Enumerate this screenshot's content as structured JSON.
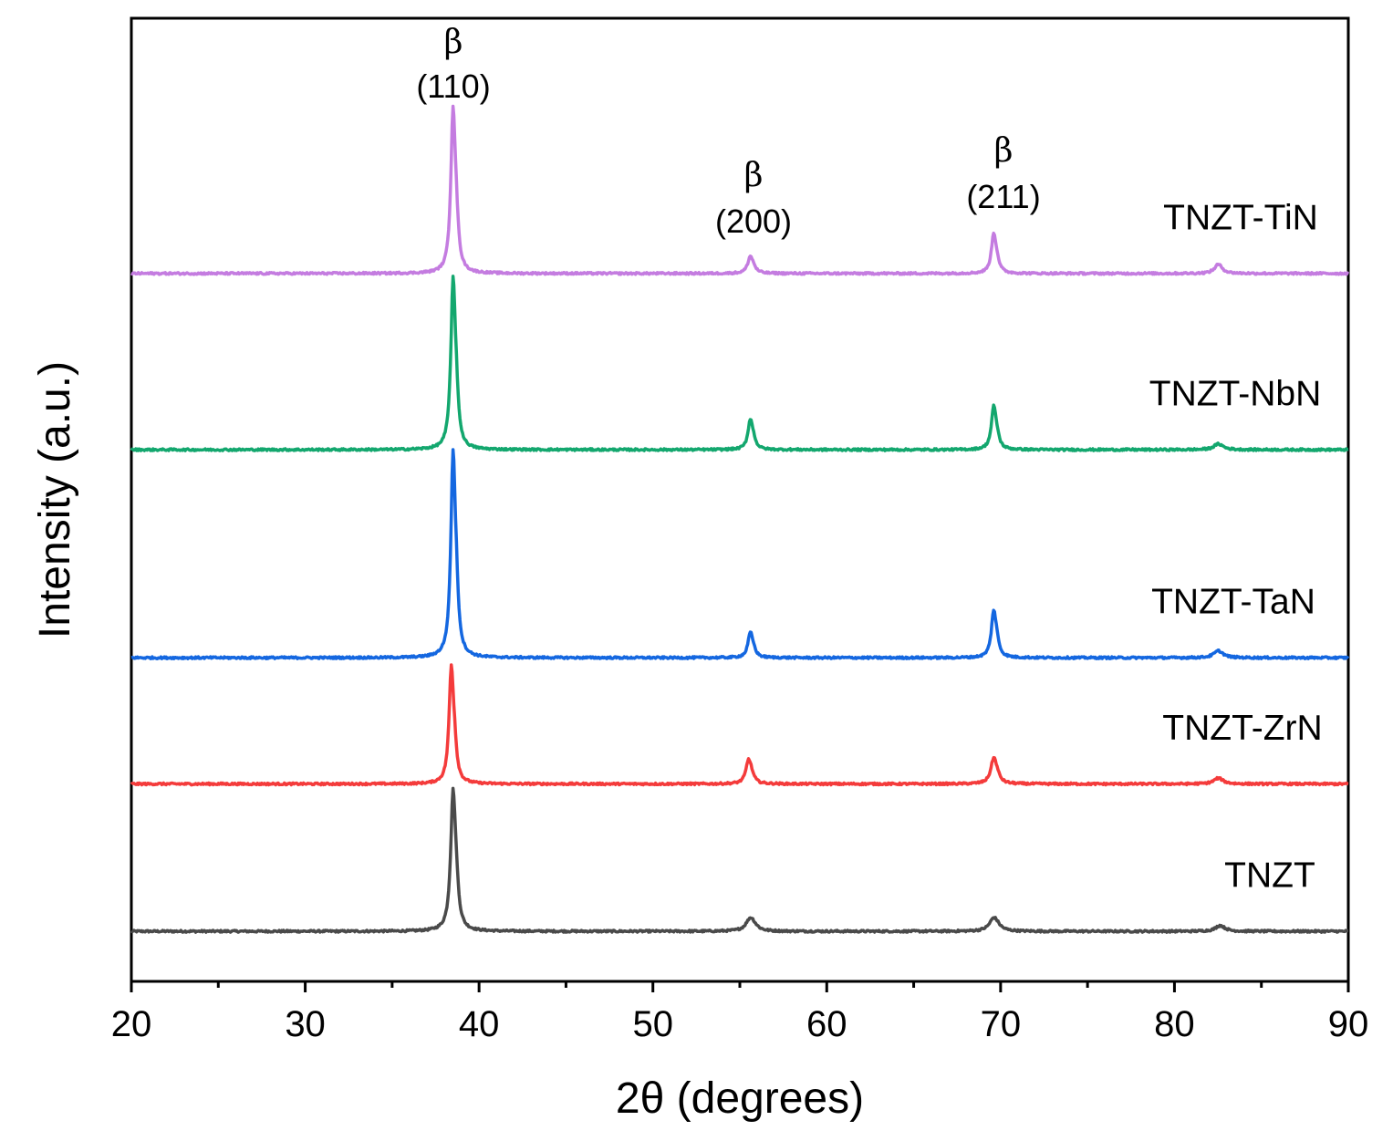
{
  "chart_data": {
    "type": "line",
    "title": "",
    "xlabel": "2θ (degrees)",
    "ylabel": "Intensity (a.u.)",
    "xlim": [
      20,
      90
    ],
    "ylim": [
      0,
      1
    ],
    "grid": false,
    "x_major_ticks": [
      20,
      30,
      40,
      50,
      60,
      70,
      80,
      90
    ],
    "x_tick_labels": [
      "20",
      "30",
      "40",
      "50",
      "60",
      "70",
      "80",
      "90"
    ],
    "x_minor_ticks": [
      25,
      35,
      45,
      55,
      65,
      75,
      85
    ],
    "series": [
      {
        "name": "TNZT",
        "label": "TNZT",
        "color": "#4a4a4a",
        "baseline": 0.052,
        "peaks": [
          {
            "x": 38.5,
            "height": 0.133,
            "width": 0.16
          },
          {
            "x": 55.6,
            "height": 0.012,
            "width": 0.3
          },
          {
            "x": 69.6,
            "height": 0.012,
            "width": 0.3
          },
          {
            "x": 82.6,
            "height": 0.005,
            "width": 0.3
          }
        ]
      },
      {
        "name": "TNZT-ZrN",
        "label": "TNZT-ZrN",
        "color": "#f43b3b",
        "baseline": 0.205,
        "peaks": [
          {
            "x": 38.4,
            "height": 0.112,
            "width": 0.15
          },
          {
            "x": 55.5,
            "height": 0.023,
            "width": 0.18
          },
          {
            "x": 69.6,
            "height": 0.024,
            "width": 0.2
          },
          {
            "x": 82.5,
            "height": 0.005,
            "width": 0.3
          }
        ]
      },
      {
        "name": "TNZT-TaN",
        "label": "TNZT-TaN",
        "color": "#1467e0",
        "baseline": 0.336,
        "peaks": [
          {
            "x": 38.5,
            "height": 0.196,
            "width": 0.15
          },
          {
            "x": 55.6,
            "height": 0.024,
            "width": 0.16
          },
          {
            "x": 69.6,
            "height": 0.045,
            "width": 0.16
          },
          {
            "x": 82.5,
            "height": 0.006,
            "width": 0.3
          }
        ]
      },
      {
        "name": "TNZT-NbN",
        "label": "TNZT-NbN",
        "color": "#13a76e",
        "baseline": 0.552,
        "peaks": [
          {
            "x": 38.5,
            "height": 0.163,
            "width": 0.15
          },
          {
            "x": 55.6,
            "height": 0.029,
            "width": 0.16
          },
          {
            "x": 69.6,
            "height": 0.041,
            "width": 0.16
          },
          {
            "x": 82.5,
            "height": 0.005,
            "width": 0.3
          }
        ]
      },
      {
        "name": "TNZT-TiN",
        "label": "TNZT-TiN",
        "color": "#c47ce0",
        "baseline": 0.735,
        "peaks": [
          {
            "x": 38.5,
            "height": 0.158,
            "width": 0.15
          },
          {
            "x": 55.6,
            "height": 0.016,
            "width": 0.18
          },
          {
            "x": 69.6,
            "height": 0.038,
            "width": 0.16
          },
          {
            "x": 82.5,
            "height": 0.008,
            "width": 0.25
          }
        ]
      }
    ],
    "annotations": [
      {
        "phase": "β",
        "hkl": "(110)",
        "x": 38.5
      },
      {
        "phase": "β",
        "hkl": "(200)",
        "x": 55.6
      },
      {
        "phase": "β",
        "hkl": "(211)",
        "x": 69.6
      }
    ]
  }
}
